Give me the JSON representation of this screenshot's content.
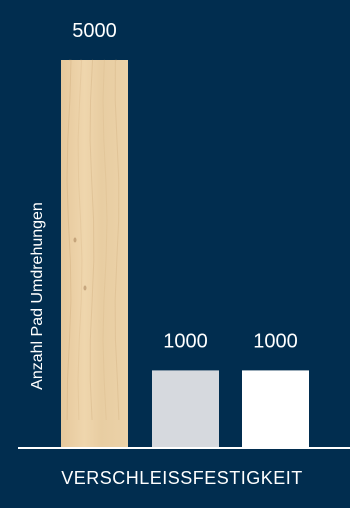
{
  "chart_data": {
    "type": "bar",
    "title": "VERSCHLEISSFESTIGKEIT",
    "ylabel": "Anzahl Pad Umdrehungen",
    "xlabel": "",
    "categories": [
      "",
      "",
      ""
    ],
    "values": [
      5000,
      1000,
      1000
    ],
    "data_labels": [
      "5000",
      "1000",
      "1000"
    ],
    "ylim": [
      0,
      5000
    ],
    "grid": false,
    "legend": "none",
    "bar_styles": [
      "wood-texture",
      "light-gray",
      "white"
    ]
  },
  "colors": {
    "background": "#012d4f",
    "axis_line": "#ffffff",
    "text": "#ffffff",
    "bar_wood": "#e9cfa6",
    "bar_gray": "#d6d9de",
    "bar_white": "#ffffff"
  }
}
